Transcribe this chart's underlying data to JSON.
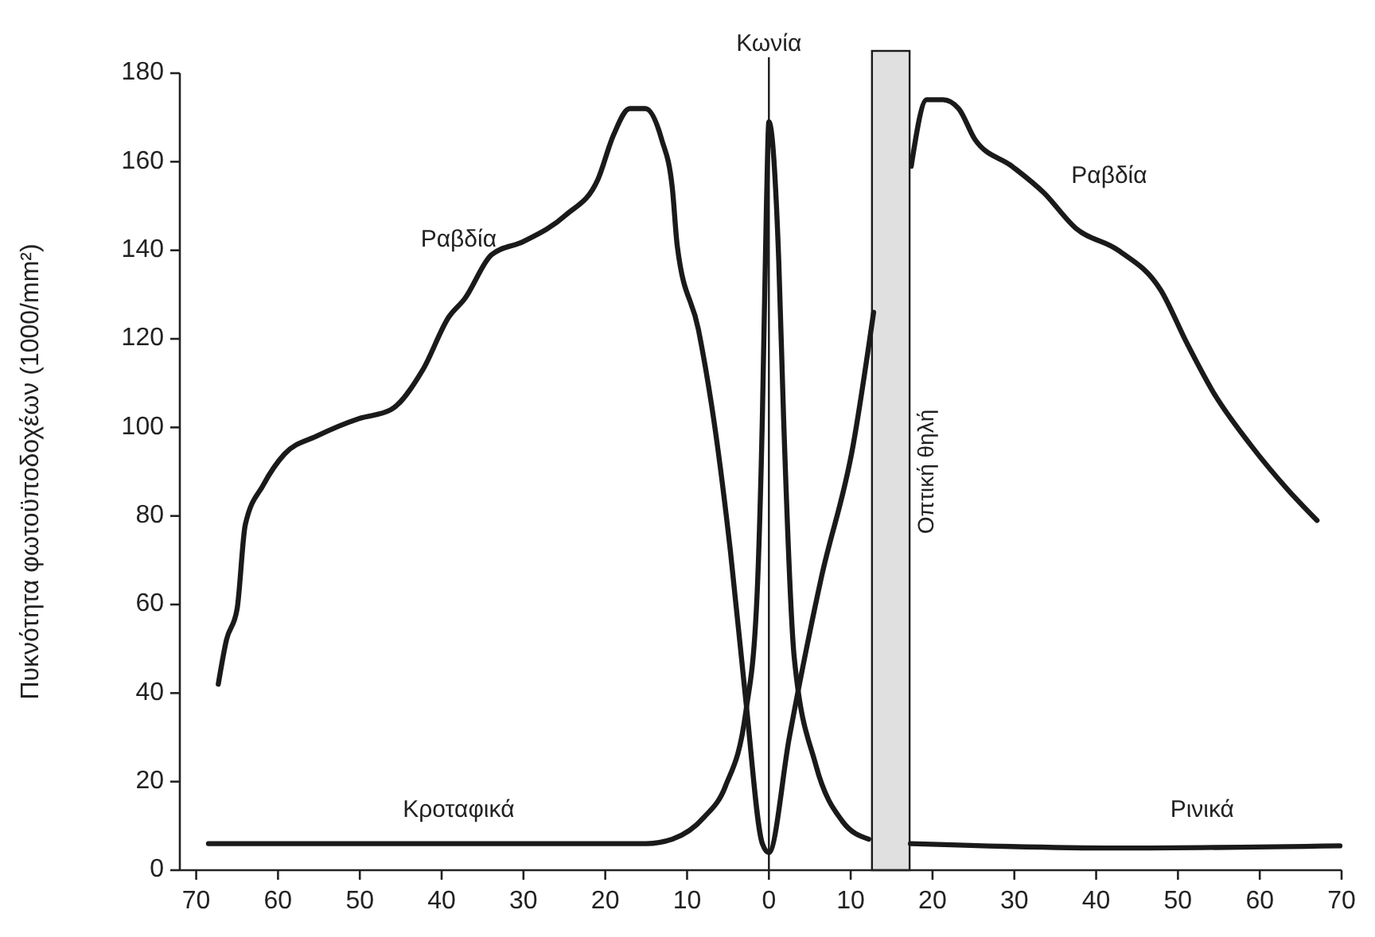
{
  "chart_data": {
    "type": "line",
    "ylabel": "Πυκνότητα φωτοϋποδοχέων (1000/mm²)",
    "xlim": [
      -72,
      70
    ],
    "ylim": [
      0,
      180
    ],
    "xticks": [
      {
        "value": -70,
        "label": "70"
      },
      {
        "value": -60,
        "label": "60"
      },
      {
        "value": -50,
        "label": "50"
      },
      {
        "value": -40,
        "label": "40"
      },
      {
        "value": -30,
        "label": "30"
      },
      {
        "value": -20,
        "label": "20"
      },
      {
        "value": -10,
        "label": "10"
      },
      0,
      10,
      20,
      30,
      40,
      50,
      60,
      70
    ],
    "yticks": [
      0,
      20,
      40,
      60,
      80,
      100,
      120,
      140,
      160,
      180
    ],
    "grid": false,
    "marker": "none",
    "line_style": "solid",
    "series": [
      {
        "color": "#1a1a1a",
        "x": [
          -67.3,
          -66.3,
          -65,
          -64,
          -61.8,
          -59.2,
          -55.3,
          -50.1,
          -46.2,
          -42.3,
          -39.1,
          -37.2,
          -33.9,
          -30,
          -24.8,
          -20.9,
          -19,
          -17,
          -15.1,
          -13.1,
          -11.8,
          -11.2,
          -8.6,
          -6.6,
          -4.7,
          -2.8,
          -0.8,
          0,
          2.5,
          6.4,
          10.3,
          12.8,
          15,
          17.4,
          19.3,
          21.3,
          23.2,
          25.2,
          29.7,
          33.6,
          37.5,
          42.7,
          47.9,
          51.1,
          54.3,
          58.9,
          63.4,
          67
        ],
        "values": [
          42,
          52,
          59,
          78,
          87,
          94,
          98,
          102,
          104,
          113,
          125,
          129,
          139,
          142,
          148,
          156,
          166,
          172,
          172,
          165,
          154,
          141,
          122,
          100,
          72,
          38,
          6,
          4,
          30,
          66,
          96,
          126,
          null,
          159,
          174,
          174,
          172,
          165,
          159,
          153,
          145,
          140,
          131,
          119,
          108,
          96,
          86,
          79
        ]
      },
      {
        "color": "#1a1a1a",
        "x": [
          -68.5,
          -40,
          -15,
          -11.8,
          -7.9,
          -5.3,
          -2.8,
          -1.5,
          -0.8,
          -0.3,
          0,
          1.2,
          1.8,
          3.1,
          5.7,
          9,
          12.2,
          15,
          17.3,
          42.6,
          69.8
        ],
        "values": [
          6,
          6,
          6,
          7,
          12,
          19,
          36,
          60,
          102,
          150,
          169,
          138,
          102,
          48,
          24,
          11,
          7,
          null,
          6,
          5,
          5.5
        ]
      }
    ],
    "ref_lines": [
      {
        "axis": "x",
        "value": 0,
        "label": "Κωνία",
        "color": "#1a1a1a"
      }
    ],
    "bands": [
      {
        "axis": "x",
        "from": 12.6,
        "to": 17.2,
        "label": "Οπτική θηλή",
        "color": "#e0e0e0"
      }
    ],
    "annotations": [
      "Ραβδία",
      "Ραβδία",
      "Κροταφικά",
      "Ρινικά"
    ]
  }
}
